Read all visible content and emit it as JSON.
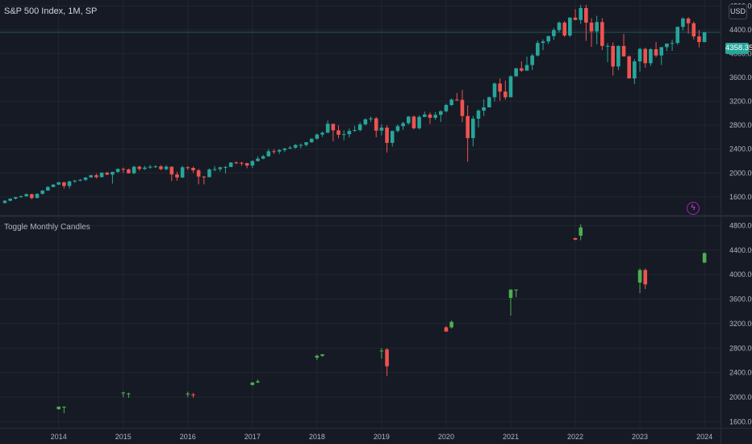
{
  "header": {
    "symbol_title": "S&P 500 Index, 1M, SP",
    "currency": "USD",
    "last_price": "4358.35"
  },
  "indicator": {
    "title": "Toggle Monthly Candles"
  },
  "icons": {
    "alert": "lightning-bolt-icon"
  },
  "colors": {
    "background": "#161a25",
    "up_main": "#26a69a",
    "down_main": "#ef5350",
    "up_sub": "#4caf50",
    "down_sub": "#ef5350",
    "grid": "#222631",
    "axis_text": "#b2b5be"
  },
  "chart_data": [
    {
      "type": "candlestick",
      "title": "S&P 500 Index, 1M, SP",
      "ylim": [
        1300,
        4900
      ],
      "y_ticks": [
        "1600.00",
        "2000.00",
        "2400.00",
        "2800.00",
        "3200.00",
        "3600.00",
        "4000.00",
        "4400.00",
        "4800.00"
      ],
      "x_ticks": [
        "2014",
        "2015",
        "2016",
        "2017",
        "2018",
        "2019",
        "2020",
        "2021",
        "2022",
        "2023",
        "2024"
      ],
      "last_price": 4358.35,
      "candles": [
        [
          1498,
          1545,
          1485,
          1535
        ],
        [
          1535,
          1575,
          1525,
          1570
        ],
        [
          1570,
          1600,
          1555,
          1595
        ],
        [
          1595,
          1625,
          1585,
          1610
        ],
        [
          1610,
          1655,
          1600,
          1645
        ],
        [
          1645,
          1650,
          1560,
          1580
        ],
        [
          1580,
          1660,
          1575,
          1650
        ],
        [
          1650,
          1715,
          1640,
          1705
        ],
        [
          1705,
          1780,
          1700,
          1765
        ],
        [
          1765,
          1815,
          1760,
          1805
        ],
        [
          1805,
          1850,
          1795,
          1845
        ],
        [
          1845,
          1850,
          1740,
          1782
        ],
        [
          1782,
          1868,
          1738,
          1860
        ],
        [
          1860,
          1885,
          1835,
          1872
        ],
        [
          1872,
          1900,
          1860,
          1885
        ],
        [
          1885,
          1930,
          1865,
          1925
        ],
        [
          1925,
          1970,
          1920,
          1962
        ],
        [
          1962,
          1990,
          1905,
          1930
        ],
        [
          1930,
          2010,
          1925,
          2005
        ],
        [
          2005,
          2020,
          1965,
          1972
        ],
        [
          1972,
          2020,
          1820,
          2018
        ],
        [
          2018,
          2075,
          2000,
          2068
        ],
        [
          2068,
          2090,
          2000,
          2060
        ],
        [
          2060,
          2075,
          1990,
          1995
        ],
        [
          1995,
          2120,
          1980,
          2105
        ],
        [
          2105,
          2120,
          2040,
          2068
        ],
        [
          2068,
          2120,
          2050,
          2090
        ],
        [
          2090,
          2135,
          2070,
          2105
        ],
        [
          2105,
          2130,
          2085,
          2110
        ],
        [
          2110,
          2130,
          2045,
          2065
        ],
        [
          2065,
          2130,
          2045,
          2105
        ],
        [
          2105,
          2110,
          1865,
          1975
        ],
        [
          1975,
          2020,
          1870,
          1925
        ],
        [
          1925,
          2120,
          1915,
          2095
        ],
        [
          2095,
          2115,
          2050,
          2085
        ],
        [
          2085,
          2105,
          2000,
          2045
        ],
        [
          2045,
          2070,
          1810,
          1940
        ],
        [
          1940,
          1950,
          1810,
          1930
        ],
        [
          1930,
          2075,
          1930,
          2060
        ],
        [
          2060,
          2115,
          2030,
          2065
        ],
        [
          2065,
          2105,
          2025,
          2095
        ],
        [
          2095,
          2120,
          1990,
          2100
        ],
        [
          2100,
          2180,
          2100,
          2175
        ],
        [
          2175,
          2195,
          2150,
          2170
        ],
        [
          2170,
          2190,
          2120,
          2165
        ],
        [
          2165,
          2170,
          2080,
          2125
        ],
        [
          2125,
          2215,
          2085,
          2200
        ],
        [
          2200,
          2280,
          2190,
          2240
        ],
        [
          2240,
          2305,
          2230,
          2280
        ],
        [
          2280,
          2400,
          2270,
          2365
        ],
        [
          2365,
          2400,
          2320,
          2360
        ],
        [
          2360,
          2400,
          2320,
          2385
        ],
        [
          2385,
          2420,
          2350,
          2410
        ],
        [
          2410,
          2455,
          2400,
          2425
        ],
        [
          2425,
          2485,
          2405,
          2470
        ],
        [
          2470,
          2495,
          2415,
          2470
        ],
        [
          2470,
          2520,
          2445,
          2515
        ],
        [
          2515,
          2580,
          2505,
          2575
        ],
        [
          2575,
          2660,
          2555,
          2645
        ],
        [
          2645,
          2695,
          2605,
          2675
        ],
        [
          2675,
          2880,
          2670,
          2825
        ],
        [
          2825,
          2790,
          2530,
          2715
        ],
        [
          2715,
          2800,
          2580,
          2640
        ],
        [
          2640,
          2715,
          2550,
          2650
        ],
        [
          2650,
          2745,
          2595,
          2705
        ],
        [
          2705,
          2790,
          2690,
          2720
        ],
        [
          2720,
          2850,
          2695,
          2815
        ],
        [
          2815,
          2915,
          2795,
          2900
        ],
        [
          2900,
          2945,
          2855,
          2915
        ],
        [
          2915,
          2940,
          2600,
          2710
        ],
        [
          2710,
          2815,
          2630,
          2760
        ],
        [
          2760,
          2800,
          2345,
          2505
        ],
        [
          2505,
          2710,
          2445,
          2705
        ],
        [
          2705,
          2815,
          2680,
          2785
        ],
        [
          2785,
          2860,
          2720,
          2835
        ],
        [
          2835,
          2955,
          2810,
          2945
        ],
        [
          2945,
          2965,
          2730,
          2750
        ],
        [
          2750,
          2965,
          2730,
          2940
        ],
        [
          2940,
          3030,
          2935,
          2980
        ],
        [
          2980,
          3015,
          2820,
          2925
        ],
        [
          2925,
          3020,
          2890,
          2975
        ],
        [
          2975,
          3050,
          2855,
          3035
        ],
        [
          3035,
          3160,
          3015,
          3140
        ],
        [
          3140,
          3250,
          3120,
          3230
        ],
        [
          3230,
          3340,
          3210,
          3225
        ],
        [
          3225,
          3395,
          2850,
          2955
        ],
        [
          2955,
          3135,
          2190,
          2585
        ],
        [
          2585,
          2955,
          2445,
          2910
        ],
        [
          2910,
          3070,
          2765,
          3045
        ],
        [
          3045,
          3235,
          2955,
          3100
        ],
        [
          3100,
          3280,
          3110,
          3270
        ],
        [
          3270,
          3515,
          3200,
          3500
        ],
        [
          3500,
          3585,
          3210,
          3365
        ],
        [
          3365,
          3550,
          3230,
          3270
        ],
        [
          3270,
          3640,
          3275,
          3620
        ],
        [
          3620,
          3760,
          3630,
          3755
        ],
        [
          3755,
          3870,
          3695,
          3715
        ],
        [
          3715,
          3950,
          3725,
          3810
        ],
        [
          3810,
          3995,
          3725,
          3970
        ],
        [
          3970,
          4220,
          3950,
          4180
        ],
        [
          4180,
          4240,
          4060,
          4205
        ],
        [
          4205,
          4300,
          4165,
          4295
        ],
        [
          4295,
          4430,
          4230,
          4395
        ],
        [
          4395,
          4540,
          4360,
          4520
        ],
        [
          4520,
          4545,
          4280,
          4305
        ],
        [
          4305,
          4610,
          4280,
          4605
        ],
        [
          4605,
          4745,
          4560,
          4565
        ],
        [
          4565,
          4815,
          4500,
          4765
        ],
        [
          4765,
          4820,
          4215,
          4520
        ],
        [
          4520,
          4595,
          4115,
          4375
        ],
        [
          4375,
          4635,
          4155,
          4530
        ],
        [
          4530,
          4595,
          4060,
          4130
        ],
        [
          4130,
          4175,
          3860,
          4130
        ],
        [
          4130,
          4190,
          3635,
          3785
        ],
        [
          3785,
          4140,
          3725,
          4130
        ],
        [
          4130,
          4330,
          3950,
          3955
        ],
        [
          3955,
          3970,
          3585,
          3585
        ],
        [
          3585,
          3910,
          3490,
          3870
        ],
        [
          3870,
          4100,
          3700,
          4080
        ],
        [
          4080,
          4100,
          3765,
          3840
        ],
        [
          3840,
          4095,
          3795,
          4075
        ],
        [
          4075,
          4195,
          3940,
          3970
        ],
        [
          3970,
          4080,
          3810,
          4110
        ],
        [
          4110,
          4170,
          4045,
          4170
        ],
        [
          4170,
          4235,
          4050,
          4180
        ],
        [
          4180,
          4450,
          4150,
          4450
        ],
        [
          4450,
          4610,
          4390,
          4590
        ],
        [
          4590,
          4610,
          4335,
          4510
        ],
        [
          4510,
          4540,
          4240,
          4290
        ],
        [
          4290,
          4395,
          4105,
          4195
        ],
        [
          4195,
          4360,
          4190,
          4358
        ]
      ]
    },
    {
      "type": "candlestick",
      "title": "Toggle Monthly Candles",
      "ylim": [
        1500,
        4950
      ],
      "y_ticks": [
        "1600.00",
        "2000.00",
        "2400.00",
        "2800.00",
        "3200.00",
        "3600.00",
        "4000.00",
        "4400.00",
        "4800.00"
      ],
      "candles": [
        {
          "i": 10,
          "o": 1805,
          "h": 1850,
          "l": 1795,
          "c": 1845
        },
        {
          "i": 11,
          "o": 1845,
          "h": 1850,
          "l": 1740,
          "c": 1845
        },
        {
          "i": 22,
          "o": 2068,
          "h": 2090,
          "l": 2000,
          "c": 2075
        },
        {
          "i": 23,
          "o": 2060,
          "h": 2075,
          "l": 1990,
          "c": 2060
        },
        {
          "i": 34,
          "o": 2045,
          "h": 2090,
          "l": 2000,
          "c": 2060
        },
        {
          "i": 35,
          "o": 2045,
          "h": 2070,
          "l": 1990,
          "c": 2030
        },
        {
          "i": 46,
          "o": 2200,
          "h": 2245,
          "l": 2190,
          "c": 2240
        },
        {
          "i": 47,
          "o": 2240,
          "h": 2290,
          "l": 2230,
          "c": 2260
        },
        {
          "i": 58,
          "o": 2645,
          "h": 2695,
          "l": 2605,
          "c": 2675
        },
        {
          "i": 59,
          "o": 2675,
          "h": 2700,
          "l": 2660,
          "c": 2700
        },
        {
          "i": 70,
          "o": 2760,
          "h": 2800,
          "l": 2630,
          "c": 2760
        },
        {
          "i": 71,
          "o": 2780,
          "h": 2800,
          "l": 2345,
          "c": 2505
        },
        {
          "i": 82,
          "o": 3140,
          "h": 3160,
          "l": 3090,
          "c": 3070
        },
        {
          "i": 83,
          "o": 3140,
          "h": 3250,
          "l": 3120,
          "c": 3230
        },
        {
          "i": 94,
          "o": 3620,
          "h": 3760,
          "l": 3330,
          "c": 3755
        },
        {
          "i": 95,
          "o": 3755,
          "h": 3760,
          "l": 3630,
          "c": 3755
        },
        {
          "i": 106,
          "o": 4595,
          "h": 4600,
          "l": 4560,
          "c": 4570
        },
        {
          "i": 107,
          "o": 4635,
          "h": 4820,
          "l": 4560,
          "c": 4770
        },
        {
          "i": 118,
          "o": 3870,
          "h": 4100,
          "l": 3700,
          "c": 4075
        },
        {
          "i": 119,
          "o": 4075,
          "h": 4100,
          "l": 3765,
          "c": 3840
        },
        {
          "i": 130,
          "o": 4195,
          "h": 4360,
          "l": 4190,
          "c": 4350
        }
      ]
    }
  ]
}
